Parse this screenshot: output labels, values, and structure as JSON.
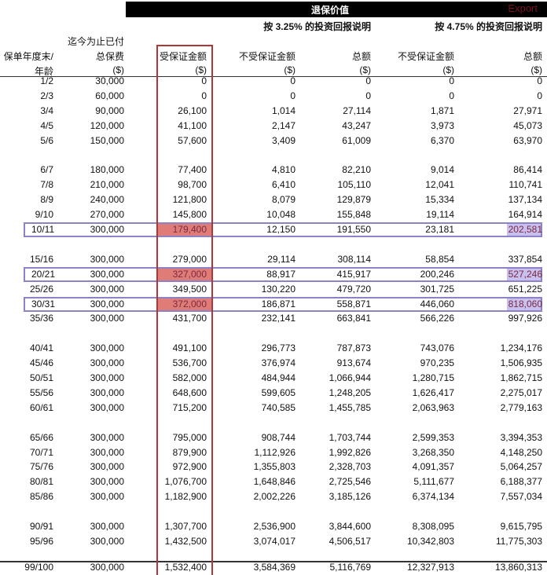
{
  "header": {
    "title": "退保价值",
    "export": "Export",
    "sub1": "按 3.25% 的投资回报说明",
    "sub2": "按 4.75% 的投资回报说明"
  },
  "columns": [
    {
      "line1": "",
      "line2": "保单年度末/",
      "line3": "年龄"
    },
    {
      "line1": "迄今为止已付",
      "line2": "总保费",
      "line3": "($)"
    },
    {
      "line1": "",
      "line2": "受保证金额",
      "line3": "($)"
    },
    {
      "line1": "",
      "line2": "不受保证金额",
      "line3": "($)"
    },
    {
      "line1": "",
      "line2": "总额",
      "line3": "($)"
    },
    {
      "line1": "",
      "line2": "不受保证金额",
      "line3": "($)"
    },
    {
      "line1": "",
      "line2": "总额",
      "line3": "($)"
    }
  ],
  "colors": {
    "guaranteed_highlight": "#e07c78",
    "total_highlight": "#c9c0f0",
    "row_outline": "#8c82c8",
    "column_outline": "#b03535"
  },
  "rows": [
    [
      "1/2",
      "30,000",
      "0",
      "0",
      "0",
      "0",
      "0"
    ],
    [
      "2/3",
      "60,000",
      "0",
      "0",
      "0",
      "0",
      "0"
    ],
    [
      "3/4",
      "90,000",
      "26,100",
      "1,014",
      "27,114",
      "1,871",
      "27,971"
    ],
    [
      "4/5",
      "120,000",
      "41,100",
      "2,147",
      "43,247",
      "3,973",
      "45,073"
    ],
    [
      "5/6",
      "150,000",
      "57,600",
      "3,409",
      "61,009",
      "6,370",
      "63,970"
    ],
    [
      "6/7",
      "180,000",
      "77,400",
      "4,810",
      "82,210",
      "9,014",
      "86,414"
    ],
    [
      "7/8",
      "210,000",
      "98,700",
      "6,410",
      "105,110",
      "12,041",
      "110,741"
    ],
    [
      "8/9",
      "240,000",
      "121,800",
      "8,079",
      "129,879",
      "15,334",
      "137,134"
    ],
    [
      "9/10",
      "270,000",
      "145,800",
      "10,048",
      "155,848",
      "19,114",
      "164,914"
    ],
    [
      "10/11",
      "300,000",
      "179,400",
      "12,150",
      "191,550",
      "23,181",
      "202,581"
    ],
    [
      "15/16",
      "300,000",
      "279,000",
      "29,114",
      "308,114",
      "58,854",
      "337,854"
    ],
    [
      "20/21",
      "300,000",
      "327,000",
      "88,917",
      "415,917",
      "200,246",
      "527,246"
    ],
    [
      "25/26",
      "300,000",
      "349,500",
      "130,220",
      "479,720",
      "301,725",
      "651,225"
    ],
    [
      "30/31",
      "300,000",
      "372,000",
      "186,871",
      "558,871",
      "446,060",
      "818,060"
    ],
    [
      "35/36",
      "300,000",
      "431,700",
      "232,141",
      "663,841",
      "566,226",
      "997,926"
    ],
    [
      "40/41",
      "300,000",
      "491,100",
      "296,773",
      "787,873",
      "743,076",
      "1,234,176"
    ],
    [
      "45/46",
      "300,000",
      "536,700",
      "376,974",
      "913,674",
      "970,235",
      "1,506,935"
    ],
    [
      "50/51",
      "300,000",
      "582,000",
      "484,944",
      "1,066,944",
      "1,280,715",
      "1,862,715"
    ],
    [
      "55/56",
      "300,000",
      "648,600",
      "599,605",
      "1,248,205",
      "1,626,417",
      "2,275,017"
    ],
    [
      "60/61",
      "300,000",
      "715,200",
      "740,585",
      "1,455,785",
      "2,063,963",
      "2,779,163"
    ],
    [
      "65/66",
      "300,000",
      "795,000",
      "908,744",
      "1,703,744",
      "2,599,353",
      "3,394,353"
    ],
    [
      "70/71",
      "300,000",
      "879,900",
      "1,112,926",
      "1,992,826",
      "3,268,350",
      "4,148,250"
    ],
    [
      "75/76",
      "300,000",
      "972,900",
      "1,355,803",
      "2,328,703",
      "4,091,357",
      "5,064,257"
    ],
    [
      "80/81",
      "300,000",
      "1,076,700",
      "1,648,846",
      "2,725,546",
      "5,111,677",
      "6,188,377"
    ],
    [
      "85/86",
      "300,000",
      "1,182,900",
      "2,002,226",
      "3,185,126",
      "6,374,134",
      "7,557,034"
    ],
    [
      "90/91",
      "300,000",
      "1,307,700",
      "2,536,900",
      "3,844,600",
      "8,308,095",
      "9,615,795"
    ],
    [
      "95/96",
      "300,000",
      "1,432,500",
      "3,074,017",
      "4,506,517",
      "10,342,803",
      "11,775,303"
    ],
    [
      "99/100",
      "300,000",
      "1,532,400",
      "3,584,369",
      "5,116,769",
      "12,327,913",
      "13,860,313"
    ]
  ],
  "highlighted_rows": [
    "10/11",
    "20/21",
    "30/31"
  ]
}
